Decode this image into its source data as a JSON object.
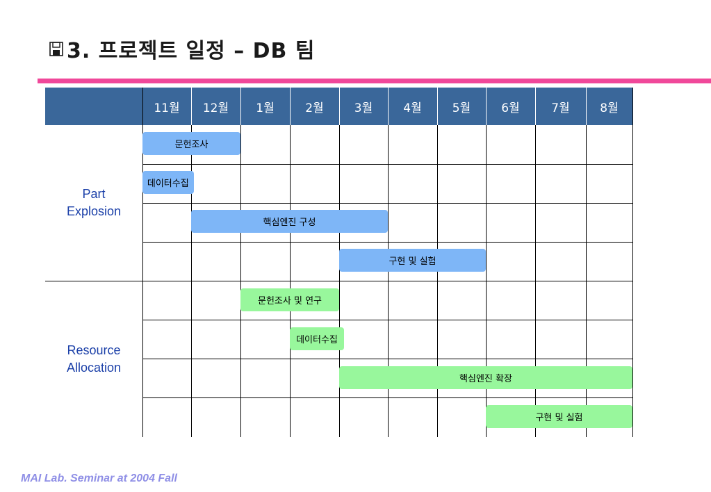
{
  "title": "3. 프로젝트 일정 – DB 팀",
  "accent_colors": {
    "rule": "#f0489a",
    "header": "#3a679a",
    "group_a_bar": "#7eb6f7",
    "group_b_bar": "#98f79c",
    "footer": "#8f8fe6"
  },
  "months": [
    "11월",
    "12월",
    "1월",
    "2월",
    "3월",
    "4월",
    "5월",
    "6월",
    "7월",
    "8월"
  ],
  "groups": [
    {
      "label_line1": "Part",
      "label_line2": "Explosion"
    },
    {
      "label_line1": "Resource",
      "label_line2": "Allocation"
    }
  ],
  "tasks": [
    {
      "label": "문헌조사",
      "group": 0,
      "row": 0,
      "start_month": 0,
      "end_month": 2
    },
    {
      "label": "데이터수집",
      "group": 0,
      "row": 1,
      "start_month": 0,
      "end_month": 1.05
    },
    {
      "label": "핵심엔진 구성",
      "group": 0,
      "row": 2,
      "start_month": 1,
      "end_month": 5
    },
    {
      "label": "구현 및 실험",
      "group": 0,
      "row": 3,
      "start_month": 4,
      "end_month": 7
    },
    {
      "label": "문헌조사 및 연구",
      "group": 1,
      "row": 0,
      "start_month": 2,
      "end_month": 4
    },
    {
      "label": "데이터수집",
      "group": 1,
      "row": 1,
      "start_month": 3,
      "end_month": 4.1
    },
    {
      "label": "핵심엔진 확장",
      "group": 1,
      "row": 2,
      "start_month": 4,
      "end_month": 10
    },
    {
      "label": "구현 및 실험",
      "group": 1,
      "row": 3,
      "start_month": 7,
      "end_month": 10
    }
  ],
  "footer": "MAI Lab. Seminar at 2004 Fall"
}
